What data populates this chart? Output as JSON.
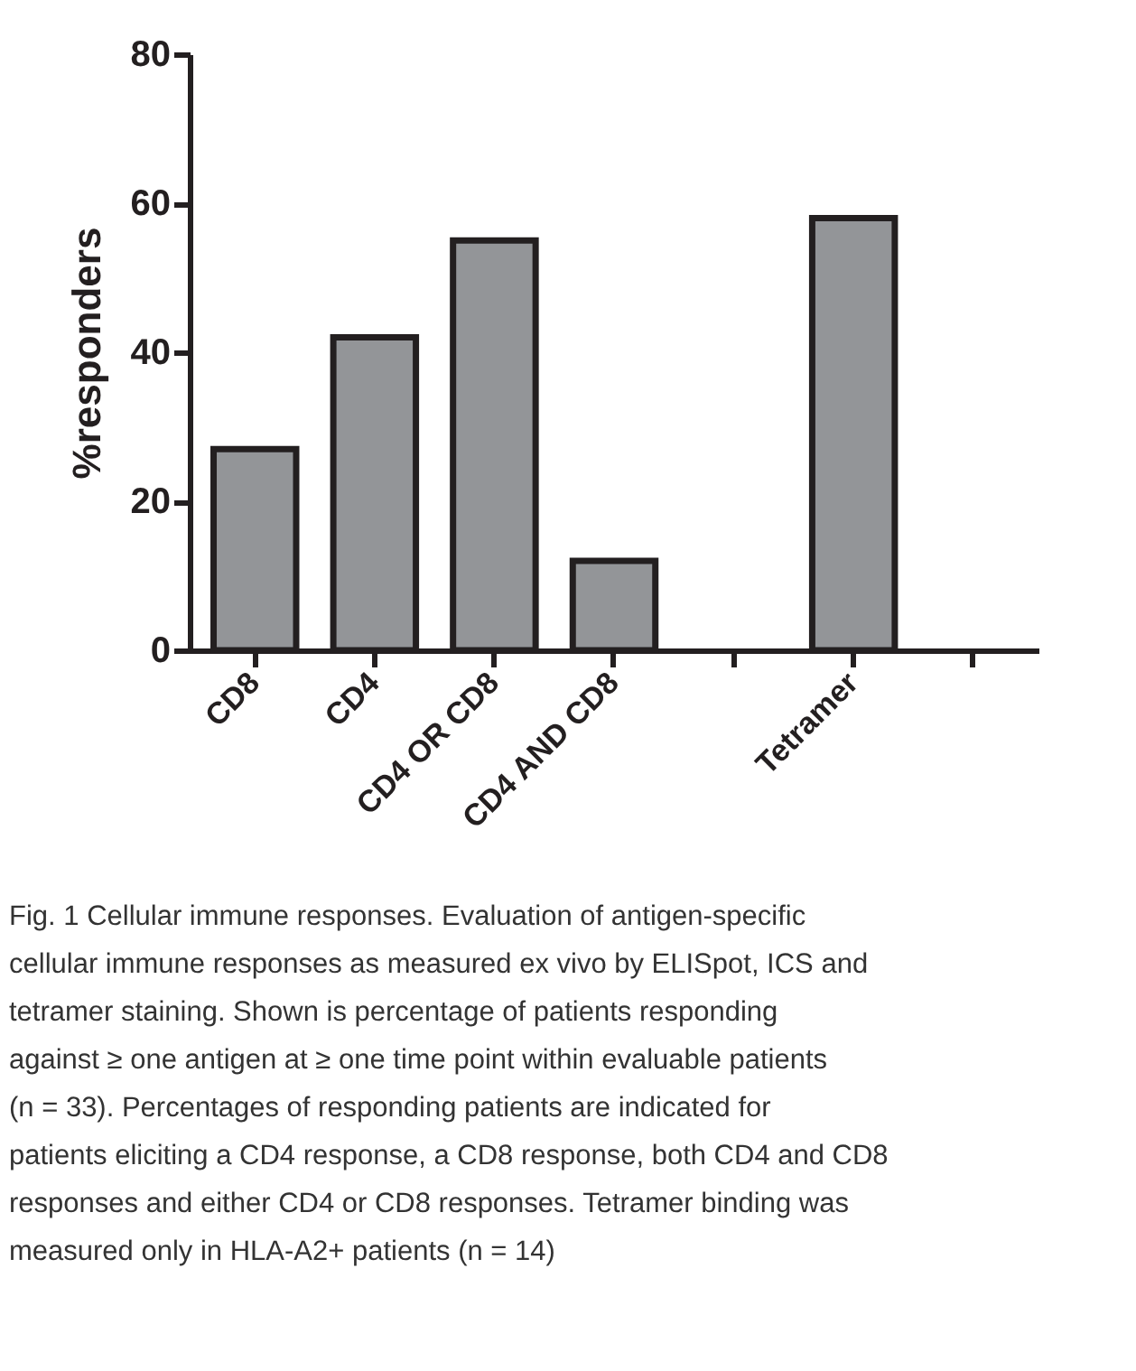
{
  "chart_data": {
    "type": "bar",
    "ylabel": "%responders",
    "categories": [
      "CD8",
      "CD4",
      "CD4 OR CD8",
      "CD4 AND CD8",
      null,
      "Tetramer",
      null
    ],
    "values": [
      27,
      42,
      55,
      12,
      null,
      58,
      null
    ],
    "colors": [
      "#939598",
      "#939598",
      "#939598",
      "#939598",
      "#939598",
      "#939598",
      "#939598"
    ],
    "ylim": [
      0,
      80
    ],
    "yticks": [
      0,
      20,
      40,
      60,
      80
    ],
    "grid": false,
    "annotations": [
      "Fig. 1 Cellular immune responses. Evaluation of antigen-specific cellular immune responses as measured ex vivo by ELISpot, ICS and tetramer staining. Shown is percentage of patients responding against ≥ one antigen at ≥ one time point within evaluable patients (n = 33). Percentages of responding patients are indicated for patients eliciting a CD4 response, a CD8 response, both CD4 and CD8 responses and either CD4 or CD8 responses. Tetramer binding was measured only in HLA-A2+ patients (n = 14)"
    ]
  }
}
